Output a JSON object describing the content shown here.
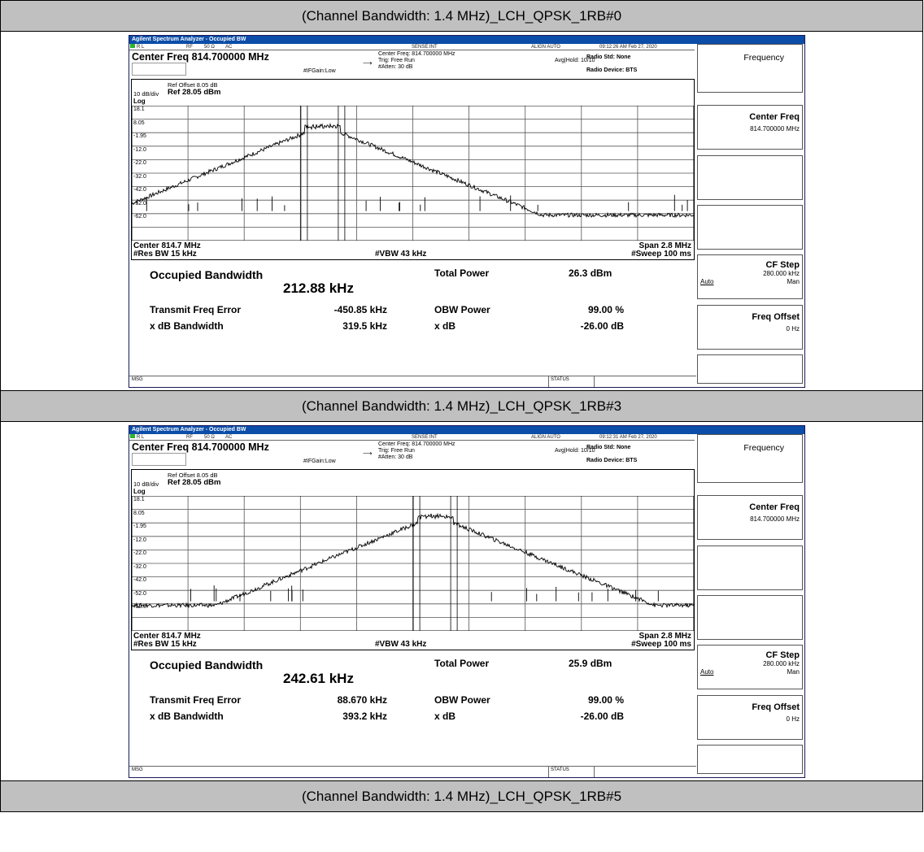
{
  "captions": [
    "(Channel Bandwidth: 1.4 MHz)_LCH_QPSK_1RB#0",
    "(Channel Bandwidth: 1.4 MHz)_LCH_QPSK_1RB#3",
    "(Channel Bandwidth: 1.4 MHz)_LCH_QPSK_1RB#5"
  ],
  "analyzers": [
    {
      "window_title": "Agilent Spectrum Analyzer - Occupied BW",
      "status": {
        "rl": "R L",
        "rf": "RF",
        "ohm": "50 Ω",
        "ac": "AC",
        "sense": "SENSE:INT",
        "align": "ALIGN AUTO",
        "time": "09:12:26 AM Feb 27, 2020"
      },
      "center_freq_title": "Center Freq 814.700000 MHz",
      "ifgain": "#IFGain:Low",
      "info_line1": "Center Freq: 814.700000 MHz",
      "info_line2": "Trig: Free Run",
      "info_line3": "#Atten: 30 dB",
      "avg_hold": "Avg|Hold: 10/10",
      "radio_std": "Radio Std: None",
      "radio_device": "Radio Device: BTS",
      "ref_offset": "Ref Offset 8.05 dB",
      "ref_level": "Ref 28.05 dBm",
      "db_div": "10 dB/div",
      "log": "Log",
      "y_ticks": [
        "18.1",
        "8.05",
        "-1.95",
        "-12.0",
        "-22.0",
        "-32.0",
        "-42.0",
        "-52.0",
        "-62.0"
      ],
      "center_label": "Center  814.7 MHz",
      "res_bw": "#Res BW  15 kHz",
      "vbw": "#VBW  43 kHz",
      "span": "Span 2.8 MHz",
      "sweep": "#Sweep  100 ms",
      "signal_center_fraction": 0.34,
      "occupied_bw_label": "Occupied Bandwidth",
      "occupied_bw_value": "212.88 kHz",
      "total_power_label": "Total Power",
      "total_power_value": "26.3 dBm",
      "tfe_label": "Transmit Freq Error",
      "tfe_value": "-450.85 kHz",
      "obw_power_label": "OBW Power",
      "obw_power_value": "99.00 %",
      "xdb_bw_label": "x dB Bandwidth",
      "xdb_bw_value": "319.5 kHz",
      "xdb_label": "x dB",
      "xdb_value": "-26.00 dB",
      "msg": "MSG",
      "status_label": "STATUS",
      "softkeys": {
        "frequency": "Frequency",
        "center_freq": "Center Freq",
        "center_freq_value": "814.700000 MHz",
        "cf_step": "CF Step",
        "cf_step_value": "280.000 kHz",
        "auto": "Auto",
        "man": "Man",
        "freq_offset": "Freq Offset",
        "freq_offset_value": "0 Hz"
      }
    },
    {
      "window_title": "Agilent Spectrum Analyzer - Occupied BW",
      "status": {
        "rl": "R L",
        "rf": "RF",
        "ohm": "50 Ω",
        "ac": "AC",
        "sense": "SENSE:INT",
        "align": "ALIGN AUTO",
        "time": "09:12:31 AM Feb 27, 2020"
      },
      "center_freq_title": "Center Freq 814.700000 MHz",
      "ifgain": "#IFGain:Low",
      "info_line1": "Center Freq: 814.700000 MHz",
      "info_line2": "Trig: Free Run",
      "info_line3": "#Atten: 30 dB",
      "avg_hold": "Avg|Hold: 10/10",
      "radio_std": "Radio Std: None",
      "radio_device": "Radio Device: BTS",
      "ref_offset": "Ref Offset 8.05 dB",
      "ref_level": "Ref 28.05 dBm",
      "db_div": "10 dB/div",
      "log": "Log",
      "y_ticks": [
        "18.1",
        "8.05",
        "-1.95",
        "-12.0",
        "-22.0",
        "-32.0",
        "-42.0",
        "-52.0",
        "-62.0"
      ],
      "center_label": "Center  814.7 MHz",
      "res_bw": "#Res BW  15 kHz",
      "vbw": "#VBW  43 kHz",
      "span": "Span 2.8 MHz",
      "sweep": "#Sweep  100 ms",
      "signal_center_fraction": 0.54,
      "occupied_bw_label": "Occupied Bandwidth",
      "occupied_bw_value": "242.61 kHz",
      "total_power_label": "Total Power",
      "total_power_value": "25.9 dBm",
      "tfe_label": "Transmit Freq Error",
      "tfe_value": "88.670 kHz",
      "obw_power_label": "OBW Power",
      "obw_power_value": "99.00 %",
      "xdb_bw_label": "x dB Bandwidth",
      "xdb_bw_value": "393.2 kHz",
      "xdb_label": "x dB",
      "xdb_value": "-26.00 dB",
      "msg": "MSG",
      "status_label": "STATUS",
      "softkeys": {
        "frequency": "Frequency",
        "center_freq": "Center Freq",
        "center_freq_value": "814.700000 MHz",
        "cf_step": "CF Step",
        "cf_step_value": "280.000 kHz",
        "auto": "Auto",
        "man": "Man",
        "freq_offset": "Freq Offset",
        "freq_offset_value": "0 Hz"
      }
    }
  ]
}
